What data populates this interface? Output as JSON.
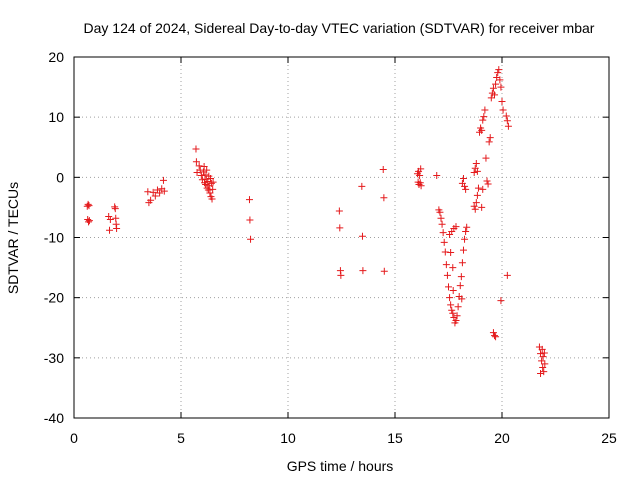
{
  "chart_data": {
    "type": "scatter",
    "title": "Day 124 of 2024, Sidereal Day-to-day VTEC variation (SDTVAR) for receiver mbar",
    "xlabel": "GPS time / hours",
    "ylabel": "SDTVAR / TECUs",
    "xlim": [
      0,
      25
    ],
    "ylim": [
      -40,
      20
    ],
    "xticks": [
      0,
      5,
      10,
      15,
      20,
      25
    ],
    "yticks": [
      -40,
      -30,
      -20,
      -10,
      0,
      10,
      20
    ],
    "grid": true,
    "marker": "+",
    "color": "#e41a1c",
    "points": [
      [
        0.62,
        -4.8
      ],
      [
        0.66,
        -4.5
      ],
      [
        0.7,
        -4.7
      ],
      [
        0.64,
        -7.0
      ],
      [
        0.68,
        -7.4
      ],
      [
        0.72,
        -7.2
      ],
      [
        1.62,
        -6.5
      ],
      [
        1.66,
        -8.8
      ],
      [
        1.7,
        -7.0
      ],
      [
        1.9,
        -4.9
      ],
      [
        1.93,
        -5.2
      ],
      [
        1.95,
        -6.8
      ],
      [
        1.97,
        -7.8
      ],
      [
        1.99,
        -8.5
      ],
      [
        3.45,
        -2.4
      ],
      [
        3.5,
        -4.2
      ],
      [
        3.58,
        -3.8
      ],
      [
        3.7,
        -2.5
      ],
      [
        3.8,
        -3.1
      ],
      [
        3.9,
        -2.1
      ],
      [
        4.0,
        -2.6
      ],
      [
        4.1,
        -1.9
      ],
      [
        4.18,
        -0.5
      ],
      [
        4.22,
        -2.3
      ],
      [
        5.7,
        4.7
      ],
      [
        5.72,
        2.6
      ],
      [
        5.75,
        0.8
      ],
      [
        5.85,
        1.9
      ],
      [
        5.9,
        1.2
      ],
      [
        5.95,
        0.3
      ],
      [
        6.0,
        -0.4
      ],
      [
        6.05,
        0.9
      ],
      [
        6.08,
        1.8
      ],
      [
        6.1,
        -0.9
      ],
      [
        6.12,
        0.4
      ],
      [
        6.15,
        -1.2
      ],
      [
        6.18,
        -0.3
      ],
      [
        6.2,
        1.2
      ],
      [
        6.22,
        -1.8
      ],
      [
        6.25,
        -0.7
      ],
      [
        6.28,
        -2.1
      ],
      [
        6.3,
        0.2
      ],
      [
        6.32,
        -1.4
      ],
      [
        6.35,
        -2.6
      ],
      [
        6.38,
        -0.2
      ],
      [
        6.4,
        -3.2
      ],
      [
        6.42,
        -1.0
      ],
      [
        6.45,
        -3.6
      ],
      [
        6.48,
        -2.0
      ],
      [
        6.5,
        -0.8
      ],
      [
        8.2,
        -3.7
      ],
      [
        8.22,
        -7.1
      ],
      [
        8.25,
        -10.3
      ],
      [
        12.4,
        -5.6
      ],
      [
        12.42,
        -8.4
      ],
      [
        12.45,
        -15.5
      ],
      [
        12.47,
        -16.3
      ],
      [
        13.45,
        -1.5
      ],
      [
        13.48,
        -9.8
      ],
      [
        13.5,
        -15.5
      ],
      [
        14.45,
        1.3
      ],
      [
        14.48,
        -3.4
      ],
      [
        14.5,
        -15.6
      ],
      [
        16.05,
        0.6
      ],
      [
        16.1,
        1.0
      ],
      [
        16.15,
        0.3
      ],
      [
        16.2,
        1.4
      ],
      [
        16.08,
        -0.8
      ],
      [
        16.12,
        -1.2
      ],
      [
        16.18,
        -0.9
      ],
      [
        16.22,
        -1.4
      ],
      [
        16.95,
        0.3
      ],
      [
        17.05,
        -5.4
      ],
      [
        17.1,
        -5.8
      ],
      [
        17.15,
        -6.8
      ],
      [
        17.2,
        -7.8
      ],
      [
        17.25,
        -9.2
      ],
      [
        17.3,
        -10.8
      ],
      [
        17.35,
        -12.4
      ],
      [
        17.4,
        -14.5
      ],
      [
        17.45,
        -16.3
      ],
      [
        17.5,
        -18.2
      ],
      [
        17.55,
        -20.0
      ],
      [
        17.6,
        -21.2
      ],
      [
        17.65,
        -22.1
      ],
      [
        17.7,
        -22.6
      ],
      [
        17.75,
        -23.3
      ],
      [
        17.8,
        -24.2
      ],
      [
        17.85,
        -23.8
      ],
      [
        17.9,
        -23.0
      ],
      [
        17.95,
        -21.5
      ],
      [
        18.0,
        -19.8
      ],
      [
        18.05,
        -18.0
      ],
      [
        18.1,
        -16.5
      ],
      [
        18.15,
        -14.2
      ],
      [
        18.2,
        -12.1
      ],
      [
        18.25,
        -10.3
      ],
      [
        18.3,
        -9.0
      ],
      [
        18.35,
        -8.3
      ],
      [
        17.55,
        -9.5
      ],
      [
        17.65,
        -9.0
      ],
      [
        17.75,
        -8.5
      ],
      [
        17.85,
        -8.2
      ],
      [
        17.6,
        -12.5
      ],
      [
        17.7,
        -15.0
      ],
      [
        17.72,
        -18.8
      ],
      [
        18.12,
        -20.2
      ],
      [
        18.2,
        -0.2
      ],
      [
        18.25,
        -1.5
      ],
      [
        18.3,
        -2.0
      ],
      [
        18.15,
        -1.0
      ],
      [
        18.7,
        -4.8
      ],
      [
        18.75,
        -5.3
      ],
      [
        18.8,
        -4.2
      ],
      [
        18.85,
        -3.0
      ],
      [
        18.9,
        -1.8
      ],
      [
        18.7,
        0.8
      ],
      [
        18.75,
        1.5
      ],
      [
        18.8,
        2.3
      ],
      [
        18.85,
        1.0
      ],
      [
        18.95,
        7.5
      ],
      [
        19.0,
        8.2
      ],
      [
        19.05,
        7.8
      ],
      [
        19.1,
        9.5
      ],
      [
        19.15,
        10.1
      ],
      [
        19.2,
        11.2
      ],
      [
        19.25,
        3.2
      ],
      [
        19.05,
        -5.0
      ],
      [
        19.1,
        -2.0
      ],
      [
        19.3,
        -0.6
      ],
      [
        19.35,
        -1.1
      ],
      [
        19.4,
        5.9
      ],
      [
        19.45,
        6.6
      ],
      [
        19.5,
        13.2
      ],
      [
        19.55,
        14.0
      ],
      [
        19.6,
        14.8
      ],
      [
        19.65,
        13.7
      ],
      [
        19.7,
        15.5
      ],
      [
        19.75,
        16.6
      ],
      [
        19.8,
        17.4
      ],
      [
        19.85,
        17.9
      ],
      [
        19.9,
        16.2
      ],
      [
        19.95,
        15.0
      ],
      [
        20.0,
        12.6
      ],
      [
        20.05,
        11.2
      ],
      [
        20.2,
        10.2
      ],
      [
        20.25,
        9.4
      ],
      [
        20.3,
        8.5
      ],
      [
        19.6,
        -25.8
      ],
      [
        19.65,
        -26.3
      ],
      [
        19.7,
        -26.5
      ],
      [
        19.95,
        -20.5
      ],
      [
        20.25,
        -16.3
      ],
      [
        21.75,
        -28.2
      ],
      [
        21.8,
        -29.3
      ],
      [
        21.85,
        -30.5
      ],
      [
        21.9,
        -31.6
      ],
      [
        21.95,
        -32.3
      ],
      [
        22.0,
        -31.0
      ],
      [
        21.88,
        -28.6
      ],
      [
        21.92,
        -29.8
      ],
      [
        21.8,
        -32.6
      ],
      [
        21.98,
        -29.2
      ]
    ]
  }
}
